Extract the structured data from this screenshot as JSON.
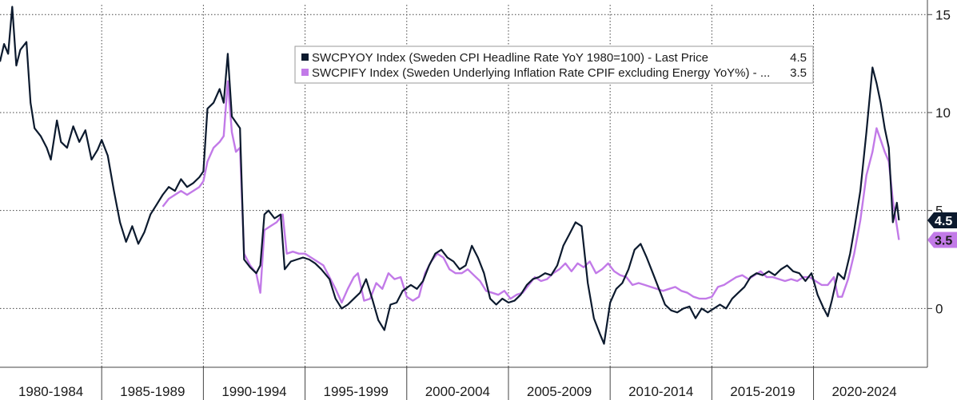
{
  "chart_data": {
    "type": "line",
    "title": "",
    "xlabel": "",
    "ylabel": "",
    "x_categories": [
      "1980-1984",
      "1985-1989",
      "1990-1994",
      "1995-1999",
      "2000-2004",
      "2005-2009",
      "2010-2014",
      "2015-2019",
      "2020-2024"
    ],
    "xlim": [
      1980,
      2025.6
    ],
    "ylim": [
      -3,
      15.5
    ],
    "y_ticks": [
      0,
      5,
      10,
      15
    ],
    "y_axis_side": "right",
    "grid": "dotted",
    "legend": {
      "placement": "top-center"
    },
    "series": [
      {
        "name": "SWCPYOY Index (Sweden CPI Headline Rate YoY 1980=100) - Last Price",
        "last_value_label": "4.5",
        "color": "#0c1a2e",
        "points": [
          [
            1980.0,
            12.6
          ],
          [
            1980.2,
            13.5
          ],
          [
            1980.4,
            13.0
          ],
          [
            1980.6,
            15.4
          ],
          [
            1980.8,
            12.4
          ],
          [
            1981.0,
            13.2
          ],
          [
            1981.3,
            13.6
          ],
          [
            1981.5,
            10.5
          ],
          [
            1981.7,
            9.2
          ],
          [
            1982.0,
            8.8
          ],
          [
            1982.3,
            8.2
          ],
          [
            1982.5,
            7.6
          ],
          [
            1982.8,
            9.6
          ],
          [
            1983.0,
            8.5
          ],
          [
            1983.3,
            8.2
          ],
          [
            1983.6,
            9.3
          ],
          [
            1983.9,
            8.5
          ],
          [
            1984.2,
            9.1
          ],
          [
            1984.5,
            7.6
          ],
          [
            1984.8,
            8.1
          ],
          [
            1985.0,
            8.6
          ],
          [
            1985.3,
            7.8
          ],
          [
            1985.6,
            6.0
          ],
          [
            1985.9,
            4.4
          ],
          [
            1986.2,
            3.4
          ],
          [
            1986.5,
            4.2
          ],
          [
            1986.8,
            3.3
          ],
          [
            1987.1,
            3.9
          ],
          [
            1987.4,
            4.8
          ],
          [
            1987.7,
            5.3
          ],
          [
            1988.0,
            5.8
          ],
          [
            1988.3,
            6.2
          ],
          [
            1988.6,
            6.0
          ],
          [
            1988.9,
            6.6
          ],
          [
            1989.2,
            6.2
          ],
          [
            1989.5,
            6.4
          ],
          [
            1989.8,
            6.7
          ],
          [
            1990.0,
            7.0
          ],
          [
            1990.2,
            10.2
          ],
          [
            1990.5,
            10.5
          ],
          [
            1990.8,
            11.2
          ],
          [
            1991.0,
            10.5
          ],
          [
            1991.2,
            13.0
          ],
          [
            1991.4,
            9.8
          ],
          [
            1991.6,
            9.5
          ],
          [
            1991.8,
            9.2
          ],
          [
            1992.0,
            2.5
          ],
          [
            1992.3,
            2.1
          ],
          [
            1992.6,
            1.8
          ],
          [
            1992.8,
            2.2
          ],
          [
            1993.0,
            4.8
          ],
          [
            1993.2,
            5.0
          ],
          [
            1993.5,
            4.6
          ],
          [
            1993.8,
            4.8
          ],
          [
            1994.0,
            2.0
          ],
          [
            1994.3,
            2.4
          ],
          [
            1994.6,
            2.5
          ],
          [
            1994.9,
            2.6
          ],
          [
            1995.2,
            2.5
          ],
          [
            1995.5,
            2.3
          ],
          [
            1995.8,
            2.0
          ],
          [
            1996.2,
            1.5
          ],
          [
            1996.5,
            0.5
          ],
          [
            1996.8,
            0.0
          ],
          [
            1997.1,
            0.2
          ],
          [
            1997.4,
            0.5
          ],
          [
            1997.7,
            0.8
          ],
          [
            1998.0,
            1.5
          ],
          [
            1998.3,
            0.5
          ],
          [
            1998.6,
            -0.6
          ],
          [
            1998.9,
            -1.1
          ],
          [
            1999.2,
            0.2
          ],
          [
            1999.5,
            0.3
          ],
          [
            1999.8,
            0.9
          ],
          [
            2000.2,
            1.2
          ],
          [
            2000.5,
            1.0
          ],
          [
            2000.8,
            1.4
          ],
          [
            2001.1,
            2.2
          ],
          [
            2001.4,
            2.8
          ],
          [
            2001.7,
            3.0
          ],
          [
            2002.0,
            2.6
          ],
          [
            2002.3,
            2.4
          ],
          [
            2002.6,
            2.0
          ],
          [
            2002.9,
            2.2
          ],
          [
            2003.2,
            3.2
          ],
          [
            2003.5,
            2.6
          ],
          [
            2003.8,
            1.8
          ],
          [
            2004.1,
            0.5
          ],
          [
            2004.4,
            0.2
          ],
          [
            2004.7,
            0.5
          ],
          [
            2005.0,
            0.3
          ],
          [
            2005.3,
            0.4
          ],
          [
            2005.6,
            0.7
          ],
          [
            2005.9,
            1.2
          ],
          [
            2006.2,
            1.5
          ],
          [
            2006.5,
            1.6
          ],
          [
            2006.8,
            1.8
          ],
          [
            2007.1,
            1.7
          ],
          [
            2007.4,
            2.2
          ],
          [
            2007.7,
            3.2
          ],
          [
            2008.0,
            3.8
          ],
          [
            2008.3,
            4.4
          ],
          [
            2008.6,
            4.2
          ],
          [
            2008.9,
            1.3
          ],
          [
            2009.2,
            -0.5
          ],
          [
            2009.5,
            -1.3
          ],
          [
            2009.7,
            -1.8
          ],
          [
            2010.0,
            0.3
          ],
          [
            2010.3,
            1.0
          ],
          [
            2010.6,
            1.3
          ],
          [
            2010.9,
            2.0
          ],
          [
            2011.2,
            3.0
          ],
          [
            2011.5,
            3.3
          ],
          [
            2011.8,
            2.6
          ],
          [
            2012.1,
            1.8
          ],
          [
            2012.4,
            1.0
          ],
          [
            2012.7,
            0.2
          ],
          [
            2013.0,
            -0.1
          ],
          [
            2013.3,
            -0.2
          ],
          [
            2013.6,
            0.0
          ],
          [
            2013.9,
            0.1
          ],
          [
            2014.2,
            -0.5
          ],
          [
            2014.5,
            0.0
          ],
          [
            2014.8,
            -0.2
          ],
          [
            2015.1,
            0.0
          ],
          [
            2015.4,
            0.2
          ],
          [
            2015.7,
            0.0
          ],
          [
            2016.0,
            0.5
          ],
          [
            2016.3,
            0.8
          ],
          [
            2016.6,
            1.1
          ],
          [
            2016.9,
            1.6
          ],
          [
            2017.2,
            1.8
          ],
          [
            2017.5,
            1.7
          ],
          [
            2017.8,
            1.9
          ],
          [
            2018.1,
            1.7
          ],
          [
            2018.4,
            2.0
          ],
          [
            2018.7,
            2.2
          ],
          [
            2019.0,
            1.9
          ],
          [
            2019.3,
            1.8
          ],
          [
            2019.6,
            1.4
          ],
          [
            2019.9,
            1.8
          ],
          [
            2020.2,
            0.7
          ],
          [
            2020.5,
            0.0
          ],
          [
            2020.7,
            -0.4
          ],
          [
            2020.9,
            0.4
          ],
          [
            2021.2,
            1.8
          ],
          [
            2021.5,
            1.5
          ],
          [
            2021.8,
            2.8
          ],
          [
            2022.0,
            4.0
          ],
          [
            2022.3,
            6.0
          ],
          [
            2022.6,
            9.0
          ],
          [
            2022.9,
            12.3
          ],
          [
            2023.1,
            11.5
          ],
          [
            2023.3,
            10.5
          ],
          [
            2023.5,
            9.2
          ],
          [
            2023.7,
            8.2
          ],
          [
            2023.9,
            4.4
          ],
          [
            2024.1,
            5.4
          ],
          [
            2024.2,
            4.5
          ]
        ]
      },
      {
        "name": "SWCPIFY Index (Sweden Underlying Inflation Rate CPIF excluding Energy YoY%) - ...",
        "last_value_label": "3.5",
        "color": "#c27ae8",
        "points": [
          [
            1988.0,
            5.2
          ],
          [
            1988.3,
            5.6
          ],
          [
            1988.6,
            5.8
          ],
          [
            1988.9,
            6.0
          ],
          [
            1989.2,
            5.8
          ],
          [
            1989.5,
            6.0
          ],
          [
            1989.8,
            6.2
          ],
          [
            1990.0,
            6.5
          ],
          [
            1990.2,
            7.5
          ],
          [
            1990.5,
            8.2
          ],
          [
            1990.8,
            8.5
          ],
          [
            1991.0,
            8.8
          ],
          [
            1991.2,
            11.6
          ],
          [
            1991.4,
            9.0
          ],
          [
            1991.6,
            8.0
          ],
          [
            1991.8,
            8.2
          ],
          [
            1992.0,
            2.8
          ],
          [
            1992.3,
            2.2
          ],
          [
            1992.6,
            1.8
          ],
          [
            1992.8,
            0.8
          ],
          [
            1993.0,
            4.0
          ],
          [
            1993.3,
            4.2
          ],
          [
            1993.6,
            4.4
          ],
          [
            1993.9,
            4.8
          ],
          [
            1994.1,
            2.8
          ],
          [
            1994.4,
            2.9
          ],
          [
            1994.7,
            2.8
          ],
          [
            1995.0,
            2.8
          ],
          [
            1995.3,
            2.6
          ],
          [
            1995.6,
            2.4
          ],
          [
            1995.9,
            2.2
          ],
          [
            1996.2,
            1.6
          ],
          [
            1996.5,
            1.0
          ],
          [
            1996.8,
            0.3
          ],
          [
            1997.1,
            1.0
          ],
          [
            1997.4,
            1.6
          ],
          [
            1997.6,
            1.8
          ],
          [
            1997.9,
            0.4
          ],
          [
            1998.2,
            0.5
          ],
          [
            1998.5,
            1.3
          ],
          [
            1998.8,
            1.0
          ],
          [
            1999.1,
            1.8
          ],
          [
            1999.4,
            1.5
          ],
          [
            1999.7,
            1.6
          ],
          [
            2000.0,
            0.6
          ],
          [
            2000.3,
            0.4
          ],
          [
            2000.6,
            0.6
          ],
          [
            2000.9,
            1.8
          ],
          [
            2001.2,
            2.4
          ],
          [
            2001.5,
            2.8
          ],
          [
            2001.8,
            2.6
          ],
          [
            2002.1,
            2.0
          ],
          [
            2002.4,
            1.8
          ],
          [
            2002.7,
            1.8
          ],
          [
            2003.0,
            2.0
          ],
          [
            2003.3,
            1.7
          ],
          [
            2003.6,
            1.4
          ],
          [
            2003.9,
            0.9
          ],
          [
            2004.2,
            0.8
          ],
          [
            2004.5,
            0.7
          ],
          [
            2004.8,
            0.9
          ],
          [
            2005.1,
            0.5
          ],
          [
            2005.4,
            0.7
          ],
          [
            2005.7,
            0.8
          ],
          [
            2006.0,
            1.2
          ],
          [
            2006.3,
            1.6
          ],
          [
            2006.6,
            1.4
          ],
          [
            2006.9,
            1.5
          ],
          [
            2007.2,
            1.8
          ],
          [
            2007.5,
            2.0
          ],
          [
            2007.8,
            2.3
          ],
          [
            2008.1,
            1.9
          ],
          [
            2008.4,
            2.3
          ],
          [
            2008.7,
            2.1
          ],
          [
            2009.0,
            2.4
          ],
          [
            2009.3,
            1.8
          ],
          [
            2009.6,
            2.0
          ],
          [
            2009.9,
            2.3
          ],
          [
            2010.2,
            1.9
          ],
          [
            2010.5,
            1.7
          ],
          [
            2010.8,
            1.6
          ],
          [
            2011.1,
            1.2
          ],
          [
            2011.4,
            1.3
          ],
          [
            2011.7,
            1.2
          ],
          [
            2012.0,
            1.1
          ],
          [
            2012.3,
            1.0
          ],
          [
            2012.6,
            0.9
          ],
          [
            2012.9,
            1.0
          ],
          [
            2013.2,
            1.1
          ],
          [
            2013.5,
            0.9
          ],
          [
            2013.8,
            0.8
          ],
          [
            2014.1,
            0.6
          ],
          [
            2014.4,
            0.5
          ],
          [
            2014.7,
            0.5
          ],
          [
            2015.0,
            0.6
          ],
          [
            2015.3,
            1.1
          ],
          [
            2015.6,
            1.2
          ],
          [
            2015.9,
            1.4
          ],
          [
            2016.2,
            1.6
          ],
          [
            2016.5,
            1.7
          ],
          [
            2016.8,
            1.5
          ],
          [
            2017.1,
            1.7
          ],
          [
            2017.4,
            1.9
          ],
          [
            2017.7,
            1.6
          ],
          [
            2018.0,
            1.6
          ],
          [
            2018.3,
            1.5
          ],
          [
            2018.6,
            1.4
          ],
          [
            2018.9,
            1.5
          ],
          [
            2019.2,
            1.4
          ],
          [
            2019.5,
            1.6
          ],
          [
            2019.8,
            1.6
          ],
          [
            2020.1,
            1.4
          ],
          [
            2020.4,
            1.2
          ],
          [
            2020.7,
            1.2
          ],
          [
            2021.0,
            1.6
          ],
          [
            2021.2,
            0.6
          ],
          [
            2021.4,
            0.6
          ],
          [
            2021.7,
            1.5
          ],
          [
            2022.0,
            2.8
          ],
          [
            2022.3,
            4.5
          ],
          [
            2022.6,
            6.8
          ],
          [
            2022.9,
            8.0
          ],
          [
            2023.1,
            9.2
          ],
          [
            2023.3,
            8.6
          ],
          [
            2023.5,
            8.0
          ],
          [
            2023.7,
            7.5
          ],
          [
            2023.9,
            5.5
          ],
          [
            2024.1,
            4.2
          ],
          [
            2024.2,
            3.5
          ]
        ]
      }
    ]
  }
}
